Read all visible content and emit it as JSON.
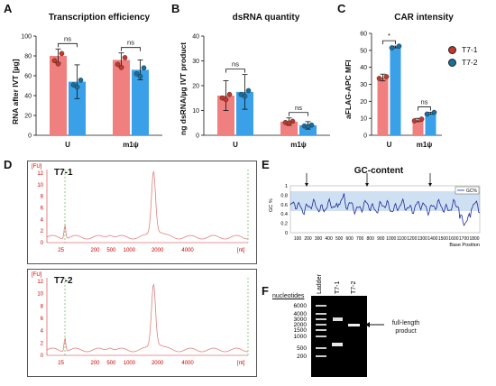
{
  "colors": {
    "t71": "#f08080",
    "t72": "#3aa0e8",
    "dot71": "#c0392b",
    "dot72": "#1a6e9a"
  },
  "panels": {
    "A": "A",
    "B": "B",
    "C": "C",
    "D": "D",
    "E": "E",
    "F": "F"
  },
  "chart_data": [
    {
      "type": "bar",
      "title": "Transcription efficiency",
      "ylabel": "RNA after IVT [µg]",
      "ylim": [
        0,
        100
      ],
      "yticks": [
        "0",
        "20",
        "40",
        "60",
        "80",
        "100"
      ],
      "categories": [
        "U",
        "m1ψ"
      ],
      "series": [
        {
          "name": "T7-1",
          "values": [
            80,
            76
          ],
          "err": [
            7,
            7
          ]
        },
        {
          "name": "T7-2",
          "values": [
            54,
            66
          ],
          "err": [
            17,
            10
          ]
        }
      ],
      "annotations": [
        "ns",
        "ns"
      ]
    },
    {
      "type": "bar",
      "title": "dsRNA quantity",
      "ylabel": "ng dsRNA/µg IVT product",
      "ylim": [
        0,
        40
      ],
      "yticks": [
        "0",
        "10",
        "20",
        "30",
        "40"
      ],
      "categories": [
        "U",
        "m1ψ"
      ],
      "series": [
        {
          "name": "T7-1",
          "values": [
            16,
            5.5
          ],
          "err": [
            6,
            1.5
          ]
        },
        {
          "name": "T7-2",
          "values": [
            17.5,
            4
          ],
          "err": [
            7,
            1.5
          ]
        }
      ],
      "annotations": [
        "ns",
        "ns"
      ]
    },
    {
      "type": "bar",
      "title": "CAR intensity",
      "ylabel": "aFLAG-APC MFI",
      "ylim": [
        0,
        60
      ],
      "yticks": [
        "0",
        "10",
        "20",
        "30",
        "40",
        "50",
        "60"
      ],
      "categories": [
        "U",
        "m1ψ"
      ],
      "series": [
        {
          "name": "T7-1",
          "values": [
            34,
            9
          ],
          "err": [
            2,
            1
          ]
        },
        {
          "name": "T7-2",
          "values": [
            52,
            13
          ],
          "err": [
            0.5,
            0.5
          ]
        }
      ],
      "annotations": [
        "*",
        "ns"
      ],
      "legend": [
        "T7-1",
        "T7-2"
      ]
    },
    {
      "type": "line",
      "title": "GC-content",
      "xlabel": "Base Position",
      "ylabel": "GC %",
      "ylim": [
        0,
        1
      ],
      "yticks": [
        "0",
        "0.2",
        "0.4",
        "0.6",
        "0.8",
        "1"
      ],
      "xticks": [
        "100",
        "200",
        "300",
        "400",
        "500",
        "600",
        "700",
        "800",
        "900",
        "1000",
        "1100",
        "1200",
        "1300",
        "1400",
        "1500",
        "1600",
        "1700",
        "1800"
      ],
      "legend": [
        "GC%"
      ]
    }
  ],
  "electropherogram": {
    "top_name": "T7-1",
    "bottom_name": "T7-2",
    "fu_label": "[FU]",
    "nt_label": "[nt]",
    "xticks": [
      "25",
      "200",
      "500",
      "1000",
      "2000",
      "4000"
    ],
    "top_yticks": [
      "0",
      "2",
      "4",
      "6",
      "8",
      "10",
      "12"
    ],
    "bottom_yticks": [
      "0",
      "2",
      "4",
      "6",
      "8",
      "10",
      "12"
    ]
  },
  "gel": {
    "col_labels": [
      "Ladder",
      "T7-1",
      "T7-2"
    ],
    "nucleotides_label": "nucleotides",
    "ladder": [
      "6000",
      "4000",
      "3000",
      "2000",
      "1500",
      "1000",
      "500",
      "200"
    ],
    "annotation": "full-length product"
  }
}
